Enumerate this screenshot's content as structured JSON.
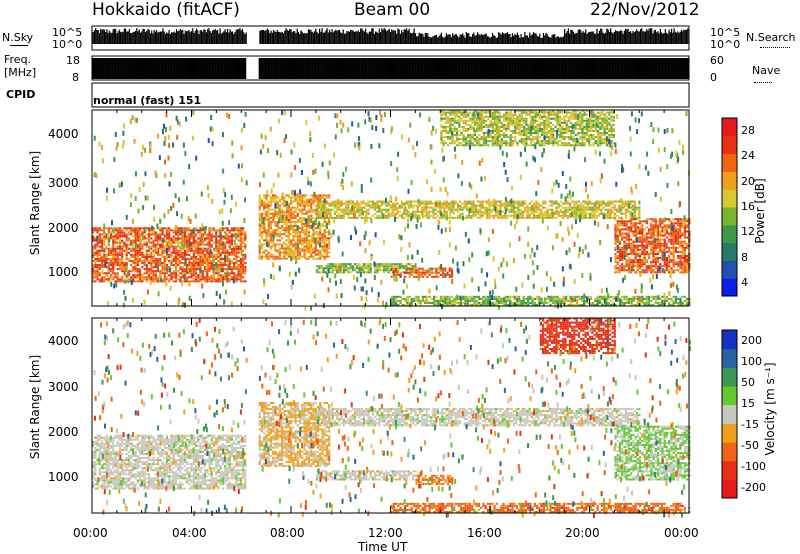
{
  "header": {
    "station": "Hokkaido (fitACF)",
    "beam": "Beam 00",
    "date": "22/Nov/2012"
  },
  "strip": {
    "nsky_label": "N.Sky",
    "nsearch_label": "N.Search",
    "freq_label": "Freq.",
    "freq_unit": "[MHz]",
    "nave_label": "Nave",
    "cpid_label": "CPID",
    "cpid_value": "normal (fast) 151",
    "noise_ticks": [
      "10^5",
      "10^0"
    ],
    "noise_right_ticks": [
      "10^5",
      "10^0"
    ],
    "freq_ticks": [
      "18",
      "8"
    ],
    "nave_ticks": [
      "60",
      "0"
    ]
  },
  "x_axis": {
    "label": "Time UT",
    "ticks": [
      "00:00",
      "04:00",
      "08:00",
      "12:00",
      "16:00",
      "20:00",
      "00:00"
    ]
  },
  "power_panel": {
    "ylabel": "Slant Range [km]",
    "yticks": [
      "4000",
      "3000",
      "2000",
      "1000"
    ],
    "colorbar_label": "Power [dB]",
    "colorbar_ticks": [
      "28",
      "24",
      "20",
      "16",
      "12",
      "8",
      "4"
    ],
    "colors": [
      "#0a1ee6",
      "#2050b4",
      "#2a7a6a",
      "#3c9a46",
      "#78b432",
      "#d7c832",
      "#f0a01e",
      "#f06414",
      "#e63214",
      "#e61a1a"
    ]
  },
  "velocity_panel": {
    "ylabel": "Slant Range [km]",
    "yticks": [
      "4000",
      "3000",
      "2000",
      "1000"
    ],
    "colorbar_label": "Velocity [m s⁻¹]",
    "colorbar_ticks": [
      "200",
      "100",
      "50",
      "15",
      "-15",
      "-50",
      "-100",
      "-200"
    ],
    "colors": [
      "#1432c8",
      "#2864a0",
      "#3c9650",
      "#64c832",
      "#c8c8c0",
      "#f0a01e",
      "#f06414",
      "#e63214",
      "#e61a1a"
    ]
  },
  "chart_data": [
    {
      "type": "heatmap",
      "title": "Power",
      "x_range_hours": [
        0,
        24
      ],
      "y_range_km": [
        180,
        4500
      ],
      "colorbar_range_db": [
        0,
        32
      ],
      "gap_hours": [
        6.2,
        6.7
      ],
      "echo_regions": [
        {
          "t": [
            0,
            6.2
          ],
          "range_km": [
            700,
            1900
          ],
          "db": 26
        },
        {
          "t": [
            6.7,
            9.5
          ],
          "range_km": [
            1200,
            2600
          ],
          "db": 22
        },
        {
          "t": [
            9,
            13
          ],
          "range_km": [
            900,
            1100
          ],
          "db": 14
        },
        {
          "t": [
            12,
            14.5
          ],
          "range_km": [
            800,
            1000
          ],
          "db": 26
        },
        {
          "t": [
            9,
            22
          ],
          "range_km": [
            2100,
            2500
          ],
          "db": 18
        },
        {
          "t": [
            21,
            24
          ],
          "range_km": [
            900,
            2100
          ],
          "db": 26
        },
        {
          "t": [
            12,
            24
          ],
          "range_km": [
            180,
            400
          ],
          "db": 14
        },
        {
          "t": [
            14,
            21
          ],
          "range_km": [
            3700,
            4500
          ],
          "db": 16
        }
      ]
    },
    {
      "type": "heatmap",
      "title": "Velocity",
      "x_range_hours": [
        0,
        24
      ],
      "y_range_km": [
        180,
        4500
      ],
      "colorbar_range_ms": [
        -200,
        200
      ],
      "gap_hours": [
        6.2,
        6.7
      ],
      "echo_regions": [
        {
          "t": [
            0,
            6.2
          ],
          "range_km": [
            700,
            1900
          ],
          "v": 0
        },
        {
          "t": [
            6.7,
            9.5
          ],
          "range_km": [
            1200,
            2600
          ],
          "v": -30
        },
        {
          "t": [
            9,
            13
          ],
          "range_km": [
            900,
            1100
          ],
          "v": 0
        },
        {
          "t": [
            13,
            14.5
          ],
          "range_km": [
            800,
            1000
          ],
          "v": -80
        },
        {
          "t": [
            9,
            22
          ],
          "range_km": [
            2100,
            2500
          ],
          "v": 0
        },
        {
          "t": [
            21,
            24
          ],
          "range_km": [
            900,
            2100
          ],
          "v": 30
        },
        {
          "t": [
            12,
            24
          ],
          "range_km": [
            180,
            400
          ],
          "v": -100
        },
        {
          "t": [
            18,
            21
          ],
          "range_km": [
            3700,
            4500
          ],
          "v": -150
        }
      ]
    }
  ]
}
